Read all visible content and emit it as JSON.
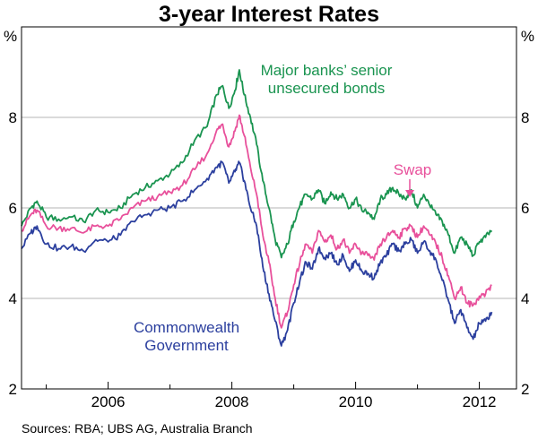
{
  "chart_data": {
    "type": "line",
    "title": "3-year Interest Rates",
    "y_unit_left": "%",
    "y_unit_right": "%",
    "ylim": [
      2,
      10
    ],
    "yticks": [
      "2",
      "4",
      "6",
      "8"
    ],
    "xlim": [
      2004.6,
      2012.6
    ],
    "xticks": [
      "2006",
      "2008",
      "2010",
      "2012"
    ],
    "grid": true,
    "source": "Sources: RBA; UBS AG, Australia Branch",
    "series": [
      {
        "name": "Major banks’ senior unsecured bonds",
        "label_lines": [
          "Major banks’ senior",
          "unsecured bonds"
        ],
        "color": "#1a9450",
        "points": [
          [
            2004.6,
            5.6
          ],
          [
            2004.75,
            6.0
          ],
          [
            2004.85,
            6.15
          ],
          [
            2005.0,
            5.8
          ],
          [
            2005.2,
            5.75
          ],
          [
            2005.4,
            5.8
          ],
          [
            2005.6,
            5.7
          ],
          [
            2005.8,
            5.95
          ],
          [
            2006.0,
            5.9
          ],
          [
            2006.2,
            6.0
          ],
          [
            2006.4,
            6.3
          ],
          [
            2006.6,
            6.45
          ],
          [
            2006.8,
            6.6
          ],
          [
            2007.0,
            6.75
          ],
          [
            2007.2,
            7.0
          ],
          [
            2007.4,
            7.5
          ],
          [
            2007.6,
            7.8
          ],
          [
            2007.75,
            8.5
          ],
          [
            2007.85,
            8.7
          ],
          [
            2007.95,
            8.2
          ],
          [
            2008.05,
            8.6
          ],
          [
            2008.12,
            9.05
          ],
          [
            2008.2,
            8.5
          ],
          [
            2008.3,
            8.0
          ],
          [
            2008.4,
            7.4
          ],
          [
            2008.5,
            6.6
          ],
          [
            2008.6,
            6.0
          ],
          [
            2008.7,
            5.3
          ],
          [
            2008.8,
            4.9
          ],
          [
            2008.9,
            5.2
          ],
          [
            2009.0,
            5.7
          ],
          [
            2009.1,
            6.05
          ],
          [
            2009.2,
            6.3
          ],
          [
            2009.3,
            6.2
          ],
          [
            2009.4,
            6.4
          ],
          [
            2009.5,
            6.1
          ],
          [
            2009.6,
            6.35
          ],
          [
            2009.7,
            6.2
          ],
          [
            2009.8,
            6.3
          ],
          [
            2009.9,
            6.0
          ],
          [
            2010.0,
            6.2
          ],
          [
            2010.1,
            5.95
          ],
          [
            2010.2,
            5.9
          ],
          [
            2010.3,
            5.75
          ],
          [
            2010.4,
            6.2
          ],
          [
            2010.5,
            6.3
          ],
          [
            2010.6,
            6.45
          ],
          [
            2010.7,
            6.3
          ],
          [
            2010.8,
            6.2
          ],
          [
            2010.9,
            6.4
          ],
          [
            2011.0,
            6.0
          ],
          [
            2011.1,
            6.3
          ],
          [
            2011.2,
            6.05
          ],
          [
            2011.3,
            5.85
          ],
          [
            2011.4,
            5.7
          ],
          [
            2011.5,
            5.4
          ],
          [
            2011.6,
            5.0
          ],
          [
            2011.7,
            5.35
          ],
          [
            2011.8,
            5.2
          ],
          [
            2011.9,
            4.95
          ],
          [
            2012.0,
            5.25
          ],
          [
            2012.1,
            5.35
          ],
          [
            2012.2,
            5.5
          ]
        ]
      },
      {
        "name": "Swap",
        "label_lines": [
          "Swap"
        ],
        "color": "#e8509b",
        "points": [
          [
            2004.6,
            5.5
          ],
          [
            2004.75,
            5.85
          ],
          [
            2004.85,
            5.95
          ],
          [
            2005.0,
            5.6
          ],
          [
            2005.2,
            5.55
          ],
          [
            2005.4,
            5.55
          ],
          [
            2005.6,
            5.45
          ],
          [
            2005.8,
            5.6
          ],
          [
            2006.0,
            5.6
          ],
          [
            2006.2,
            5.75
          ],
          [
            2006.4,
            6.0
          ],
          [
            2006.6,
            6.15
          ],
          [
            2006.8,
            6.25
          ],
          [
            2007.0,
            6.35
          ],
          [
            2007.2,
            6.5
          ],
          [
            2007.4,
            6.85
          ],
          [
            2007.6,
            7.2
          ],
          [
            2007.75,
            7.7
          ],
          [
            2007.85,
            7.85
          ],
          [
            2007.95,
            7.35
          ],
          [
            2008.05,
            7.7
          ],
          [
            2008.12,
            8.05
          ],
          [
            2008.2,
            7.6
          ],
          [
            2008.3,
            6.9
          ],
          [
            2008.4,
            6.3
          ],
          [
            2008.5,
            5.4
          ],
          [
            2008.6,
            4.8
          ],
          [
            2008.7,
            4.0
          ],
          [
            2008.8,
            3.35
          ],
          [
            2008.9,
            3.7
          ],
          [
            2009.0,
            4.3
          ],
          [
            2009.1,
            4.8
          ],
          [
            2009.2,
            5.2
          ],
          [
            2009.3,
            5.0
          ],
          [
            2009.4,
            5.5
          ],
          [
            2009.5,
            5.25
          ],
          [
            2009.6,
            5.4
          ],
          [
            2009.7,
            5.1
          ],
          [
            2009.8,
            5.3
          ],
          [
            2009.9,
            5.0
          ],
          [
            2010.0,
            5.2
          ],
          [
            2010.1,
            5.0
          ],
          [
            2010.2,
            4.95
          ],
          [
            2010.3,
            4.85
          ],
          [
            2010.4,
            5.2
          ],
          [
            2010.5,
            5.35
          ],
          [
            2010.6,
            5.5
          ],
          [
            2010.7,
            5.35
          ],
          [
            2010.8,
            5.55
          ],
          [
            2010.9,
            5.6
          ],
          [
            2011.0,
            5.35
          ],
          [
            2011.1,
            5.6
          ],
          [
            2011.2,
            5.4
          ],
          [
            2011.3,
            5.2
          ],
          [
            2011.4,
            4.9
          ],
          [
            2011.5,
            4.5
          ],
          [
            2011.6,
            4.0
          ],
          [
            2011.7,
            4.25
          ],
          [
            2011.8,
            3.9
          ],
          [
            2011.9,
            3.85
          ],
          [
            2012.0,
            4.05
          ],
          [
            2012.1,
            4.1
          ],
          [
            2012.2,
            4.3
          ]
        ]
      },
      {
        "name": "Commonwealth Government",
        "label_lines": [
          "Commonwealth",
          "Government"
        ],
        "color": "#2b3f9e",
        "points": [
          [
            2004.6,
            5.1
          ],
          [
            2004.75,
            5.45
          ],
          [
            2004.85,
            5.6
          ],
          [
            2005.0,
            5.2
          ],
          [
            2005.2,
            5.1
          ],
          [
            2005.4,
            5.15
          ],
          [
            2005.6,
            5.05
          ],
          [
            2005.8,
            5.3
          ],
          [
            2006.0,
            5.25
          ],
          [
            2006.2,
            5.4
          ],
          [
            2006.4,
            5.7
          ],
          [
            2006.6,
            5.85
          ],
          [
            2006.8,
            5.95
          ],
          [
            2007.0,
            6.0
          ],
          [
            2007.2,
            6.15
          ],
          [
            2007.4,
            6.4
          ],
          [
            2007.6,
            6.65
          ],
          [
            2007.75,
            6.9
          ],
          [
            2007.85,
            7.0
          ],
          [
            2007.95,
            6.55
          ],
          [
            2008.05,
            6.8
          ],
          [
            2008.12,
            7.0
          ],
          [
            2008.2,
            6.6
          ],
          [
            2008.3,
            6.0
          ],
          [
            2008.4,
            5.6
          ],
          [
            2008.5,
            4.7
          ],
          [
            2008.6,
            4.1
          ],
          [
            2008.7,
            3.5
          ],
          [
            2008.8,
            2.95
          ],
          [
            2008.9,
            3.3
          ],
          [
            2009.0,
            3.9
          ],
          [
            2009.1,
            4.4
          ],
          [
            2009.2,
            4.8
          ],
          [
            2009.3,
            4.65
          ],
          [
            2009.4,
            5.1
          ],
          [
            2009.5,
            4.9
          ],
          [
            2009.6,
            5.0
          ],
          [
            2009.7,
            4.75
          ],
          [
            2009.8,
            4.95
          ],
          [
            2009.9,
            4.6
          ],
          [
            2010.0,
            4.85
          ],
          [
            2010.1,
            4.6
          ],
          [
            2010.2,
            4.55
          ],
          [
            2010.3,
            4.45
          ],
          [
            2010.4,
            4.8
          ],
          [
            2010.5,
            4.95
          ],
          [
            2010.6,
            5.2
          ],
          [
            2010.7,
            5.05
          ],
          [
            2010.8,
            5.2
          ],
          [
            2010.9,
            5.3
          ],
          [
            2011.0,
            5.0
          ],
          [
            2011.1,
            5.25
          ],
          [
            2011.2,
            5.05
          ],
          [
            2011.3,
            4.85
          ],
          [
            2011.4,
            4.4
          ],
          [
            2011.5,
            3.95
          ],
          [
            2011.6,
            3.45
          ],
          [
            2011.7,
            3.75
          ],
          [
            2011.8,
            3.35
          ],
          [
            2011.9,
            3.1
          ],
          [
            2012.0,
            3.45
          ],
          [
            2012.1,
            3.5
          ],
          [
            2012.2,
            3.7
          ]
        ]
      }
    ]
  }
}
